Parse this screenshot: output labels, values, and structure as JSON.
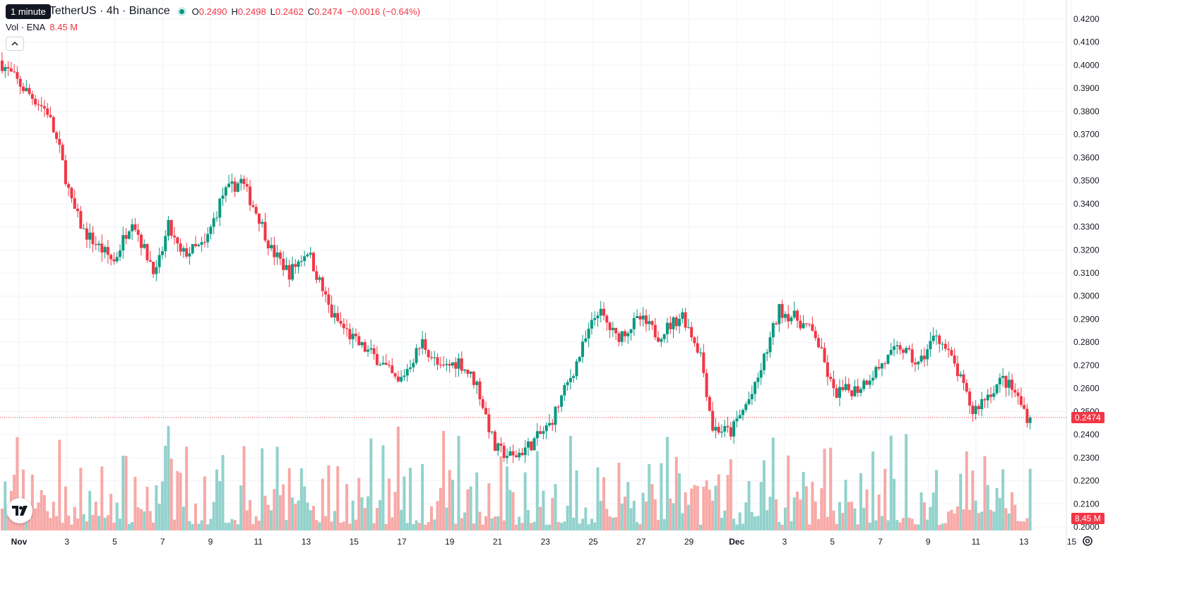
{
  "legend": {
    "tooltip": "1 minute",
    "symbol": "TetherUS · 4h · Binance",
    "ohlc": [
      {
        "k": "O",
        "v": "0.2490"
      },
      {
        "k": "H",
        "v": "0.2498"
      },
      {
        "k": "L",
        "v": "0.2462"
      },
      {
        "k": "C",
        "v": "0.2474"
      }
    ],
    "change": "−0.0016 (−0.64%)"
  },
  "volume_legend": {
    "label": "Vol · ENA",
    "value": "8.45 M"
  },
  "colors": {
    "up": "#089981",
    "down": "#f23645",
    "up_vol": "#92d2cc",
    "down_vol": "#f7a9a7"
  },
  "price_tag": {
    "last_price": "0.2474",
    "volume": "8.45 M"
  },
  "icons": {
    "collapse": "chevron-up-icon",
    "logo": "tradingview-logo-icon",
    "settings": "gear-icon"
  },
  "chart_data": {
    "type": "candlestick",
    "timeframe": "4h",
    "y_axis": {
      "ticks": [
        "0.4200",
        "0.4100",
        "0.4000",
        "0.3900",
        "0.3800",
        "0.3700",
        "0.3600",
        "0.3500",
        "0.3400",
        "0.3300",
        "0.3200",
        "0.3100",
        "0.3000",
        "0.2900",
        "0.2800",
        "0.2700",
        "0.2600",
        "0.2500",
        "0.2400",
        "0.2300",
        "0.2200",
        "0.2100",
        "0.2000"
      ],
      "range": [
        0.2,
        0.42
      ]
    },
    "x_axis": {
      "ticks": [
        "Nov",
        "3",
        "5",
        "7",
        "9",
        "11",
        "13",
        "15",
        "17",
        "19",
        "21",
        "23",
        "25",
        "27",
        "29",
        "Dec",
        "3",
        "5",
        "7",
        "9",
        "11",
        "13",
        "15"
      ],
      "bold": [
        "Nov",
        "Dec"
      ]
    },
    "last_price": 0.2474,
    "anchors": [
      [
        0,
        0.402
      ],
      [
        8,
        0.39
      ],
      [
        16,
        0.38
      ],
      [
        20,
        0.363
      ],
      [
        24,
        0.34
      ],
      [
        28,
        0.328
      ],
      [
        34,
        0.32
      ],
      [
        38,
        0.315
      ],
      [
        44,
        0.334
      ],
      [
        48,
        0.32
      ],
      [
        52,
        0.31
      ],
      [
        56,
        0.33
      ],
      [
        60,
        0.318
      ],
      [
        68,
        0.322
      ],
      [
        74,
        0.344
      ],
      [
        80,
        0.35
      ],
      [
        86,
        0.334
      ],
      [
        90,
        0.32
      ],
      [
        96,
        0.31
      ],
      [
        102,
        0.32
      ],
      [
        110,
        0.292
      ],
      [
        118,
        0.28
      ],
      [
        126,
        0.272
      ],
      [
        132,
        0.262
      ],
      [
        140,
        0.28
      ],
      [
        146,
        0.268
      ],
      [
        152,
        0.272
      ],
      [
        158,
        0.262
      ],
      [
        164,
        0.234
      ],
      [
        170,
        0.23
      ],
      [
        176,
        0.236
      ],
      [
        182,
        0.244
      ],
      [
        190,
        0.268
      ],
      [
        198,
        0.294
      ],
      [
        204,
        0.282
      ],
      [
        212,
        0.29
      ],
      [
        218,
        0.283
      ],
      [
        226,
        0.292
      ],
      [
        232,
        0.275
      ],
      [
        236,
        0.243
      ],
      [
        242,
        0.241
      ],
      [
        250,
        0.26
      ],
      [
        258,
        0.294
      ],
      [
        264,
        0.29
      ],
      [
        270,
        0.283
      ],
      [
        276,
        0.258
      ],
      [
        284,
        0.26
      ],
      [
        290,
        0.268
      ],
      [
        298,
        0.278
      ],
      [
        304,
        0.27
      ],
      [
        310,
        0.284
      ],
      [
        316,
        0.27
      ],
      [
        322,
        0.25
      ],
      [
        326,
        0.256
      ],
      [
        332,
        0.264
      ],
      [
        336,
        0.258
      ],
      [
        340,
        0.248
      ]
    ]
  }
}
